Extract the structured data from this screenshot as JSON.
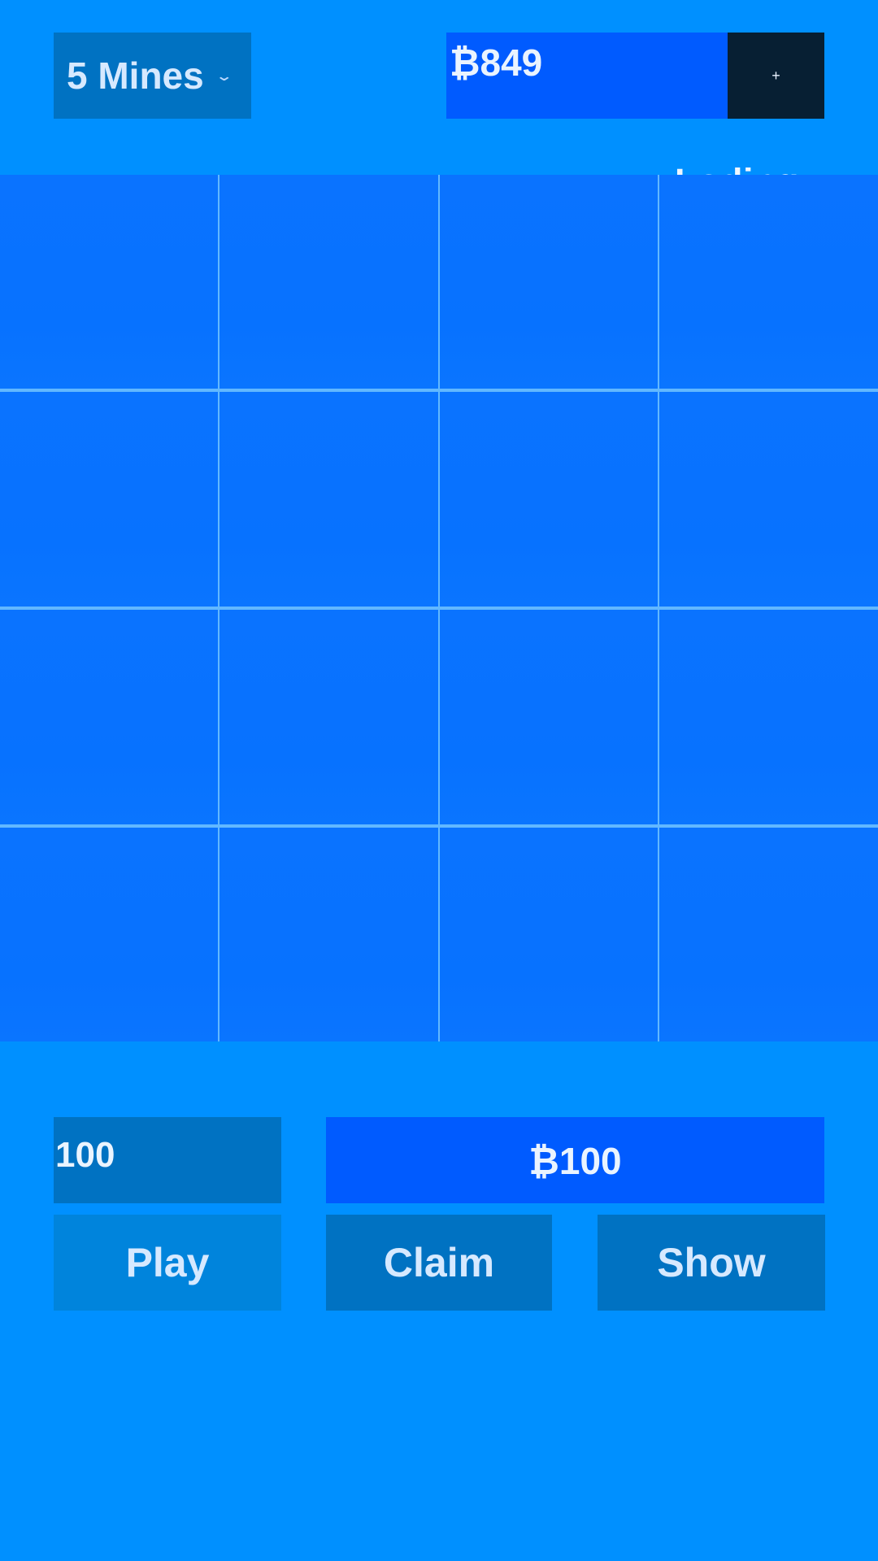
{
  "header": {
    "mines_select_label": "5 Mines",
    "mines_select_chevron": "⌄",
    "balance": "₿849",
    "add_funds_label": "+"
  },
  "status": {
    "loading_text": "Loding"
  },
  "board": {
    "rows": 4,
    "cols": 4
  },
  "controls": {
    "bet_input_value": "100",
    "bet_display": "₿100",
    "play_label": "Play",
    "claim_label": "Claim",
    "show_label": "Show"
  },
  "colors": {
    "background": "#0090ff",
    "tile": "#0772ff",
    "panel": "#0072c2",
    "accent_blue": "#005bff",
    "dark": "#071f33"
  }
}
